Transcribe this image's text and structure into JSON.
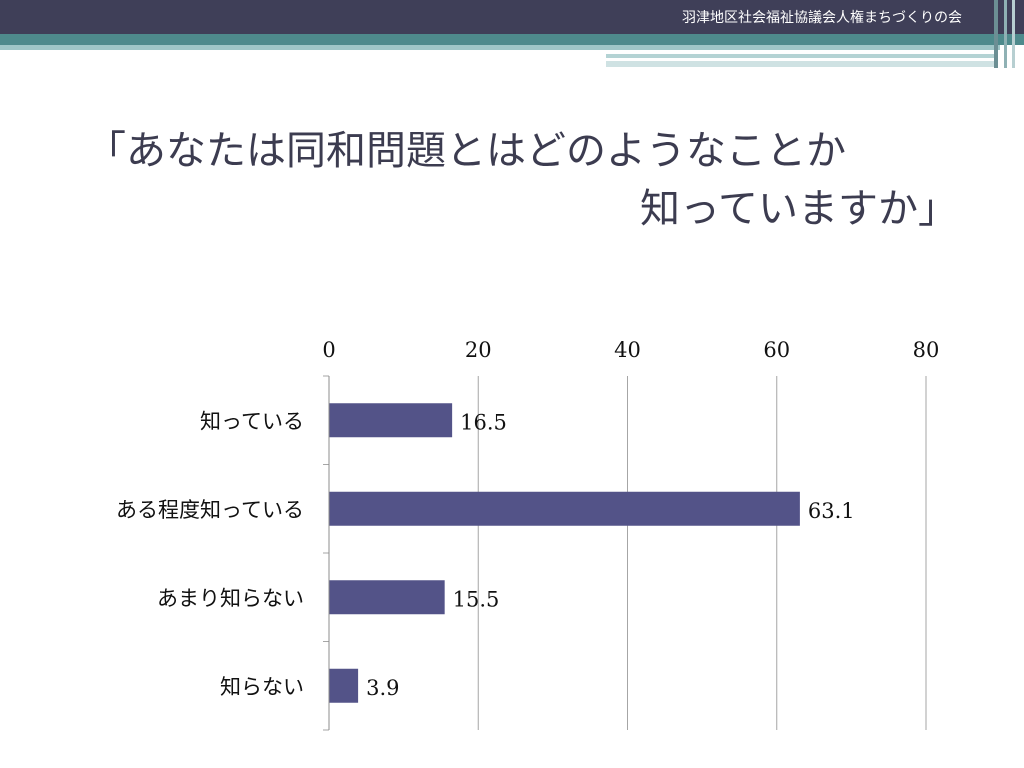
{
  "header": {
    "org_name": "羽津地区社会福祉協議会人権まちづくりの会"
  },
  "title": {
    "line1": "「あなたは同和問題とはどのようなことか",
    "line2": "知っていますか」"
  },
  "colors": {
    "header_bg": "#3f3f58",
    "accent_teal": "#4e8a8c",
    "bar": "#535388",
    "title_text": "#3c3c50"
  },
  "chart_data": {
    "type": "bar",
    "orientation": "horizontal",
    "title": "",
    "xlabel": "",
    "ylabel": "",
    "categories": [
      "知っている",
      "ある程度知っている",
      "あまり知らない",
      "知らない"
    ],
    "values": [
      16.5,
      63.1,
      15.5,
      3.9
    ],
    "value_labels": [
      "16.5",
      "63.1",
      "15.5",
      "3.9"
    ],
    "xlim": [
      0,
      80
    ],
    "xticks": [
      0,
      20,
      40,
      60,
      80
    ],
    "xtick_labels": [
      "0",
      "20",
      "40",
      "60",
      "80"
    ],
    "x_axis_position": "top",
    "grid": true,
    "legend": "none"
  }
}
